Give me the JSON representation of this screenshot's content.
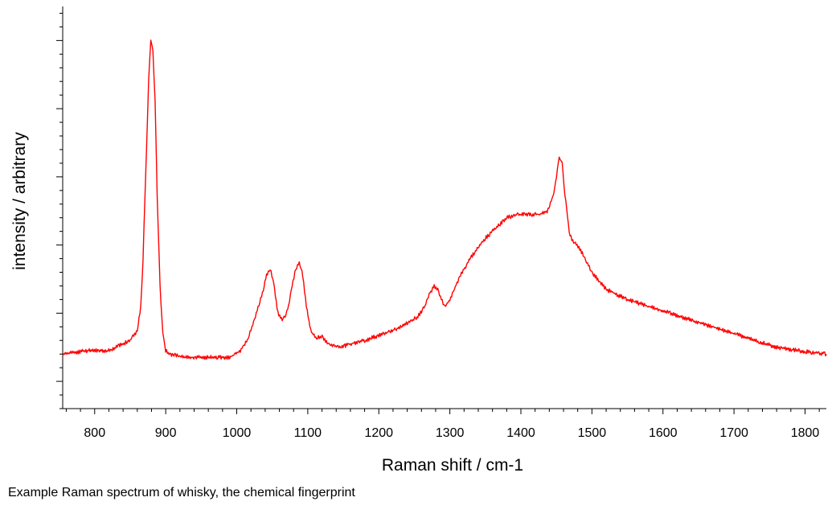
{
  "caption": "Example Raman spectrum of whisky, the chemical fingerprint",
  "chart_data": {
    "type": "line",
    "title": "",
    "xlabel": "Raman shift / cm-1",
    "ylabel": "intensity / arbitrary",
    "xlim": [
      755,
      1830
    ],
    "ylim": [
      -0.08,
      1.1
    ],
    "x_ticks": [
      800,
      900,
      1000,
      1100,
      1200,
      1300,
      1400,
      1500,
      1600,
      1700,
      1800
    ],
    "y_tick_labels_shown": false,
    "grid": false,
    "legend": "none",
    "line_color": "#ff0000",
    "series": [
      {
        "x": [
          755,
          790,
          820,
          840,
          850,
          860,
          865,
          868,
          872,
          876,
          879,
          882,
          885,
          888,
          892,
          896,
          900,
          906,
          915,
          930,
          960,
          990,
          1005,
          1015,
          1025,
          1035,
          1042,
          1047,
          1052,
          1058,
          1064,
          1068,
          1073,
          1078,
          1083,
          1088,
          1093,
          1098,
          1104,
          1110,
          1120,
          1130,
          1145,
          1160,
          1180,
          1200,
          1220,
          1240,
          1255,
          1265,
          1272,
          1278,
          1283,
          1288,
          1293,
          1300,
          1310,
          1320,
          1335,
          1350,
          1365,
          1380,
          1395,
          1410,
          1425,
          1437,
          1445,
          1450,
          1454,
          1458,
          1462,
          1468,
          1473,
          1478,
          1483,
          1490,
          1500,
          1520,
          1550,
          1580,
          1610,
          1640,
          1670,
          1700,
          1730,
          1760,
          1790,
          1810,
          1830
        ],
        "y": [
          0.08,
          0.09,
          0.09,
          0.11,
          0.12,
          0.15,
          0.22,
          0.35,
          0.62,
          0.88,
          1.0,
          0.97,
          0.83,
          0.55,
          0.28,
          0.14,
          0.09,
          0.08,
          0.075,
          0.07,
          0.07,
          0.07,
          0.09,
          0.12,
          0.18,
          0.25,
          0.31,
          0.33,
          0.29,
          0.2,
          0.18,
          0.19,
          0.22,
          0.28,
          0.33,
          0.35,
          0.31,
          0.22,
          0.15,
          0.13,
          0.13,
          0.11,
          0.1,
          0.11,
          0.12,
          0.135,
          0.15,
          0.17,
          0.19,
          0.22,
          0.26,
          0.28,
          0.27,
          0.24,
          0.22,
          0.24,
          0.29,
          0.33,
          0.38,
          0.42,
          0.45,
          0.48,
          0.49,
          0.49,
          0.49,
          0.5,
          0.54,
          0.6,
          0.66,
          0.64,
          0.55,
          0.44,
          0.41,
          0.4,
          0.39,
          0.36,
          0.32,
          0.27,
          0.24,
          0.22,
          0.2,
          0.18,
          0.16,
          0.14,
          0.12,
          0.1,
          0.09,
          0.085,
          0.08
        ]
      }
    ]
  }
}
